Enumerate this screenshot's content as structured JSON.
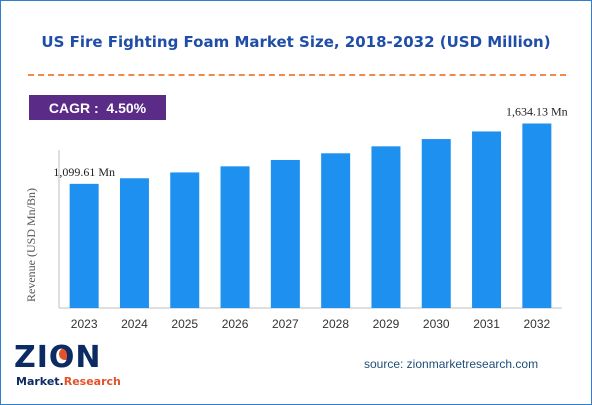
{
  "title": "US Fire Fighting Foam Market Size, 2018-2032 (USD Million)",
  "cagr": "CAGR :  4.50%",
  "source": "source: zionmarketresearch.com",
  "logo": {
    "name": "ZION",
    "sub_main": "Market.",
    "sub_accent": "Research"
  },
  "colors": {
    "bar": "#1e90f0",
    "title": "#1f4ea8",
    "cagr_bg": "#5b2c87",
    "divider": "#f08a4b"
  },
  "chart_data": {
    "type": "bar",
    "categories": [
      "2023",
      "2024",
      "2025",
      "2026",
      "2027",
      "2028",
      "2029",
      "2030",
      "2031",
      "2032"
    ],
    "values": [
      1099.61,
      1149.1,
      1200.8,
      1254.8,
      1311.3,
      1370.3,
      1432.0,
      1496.4,
      1563.8,
      1634.13
    ],
    "data_labels": [
      {
        "index": 0,
        "text": "1,099.61 Mn"
      },
      {
        "index": 9,
        "text": "1,634.13 Mn"
      }
    ],
    "title": "US Fire Fighting Foam Market Size, 2018-2032 (USD Million)",
    "xlabel": "",
    "ylabel": "Revenue (USD Mn/Bn)",
    "ylim": [
      0,
      1800
    ],
    "grid": false,
    "legend": "none"
  }
}
